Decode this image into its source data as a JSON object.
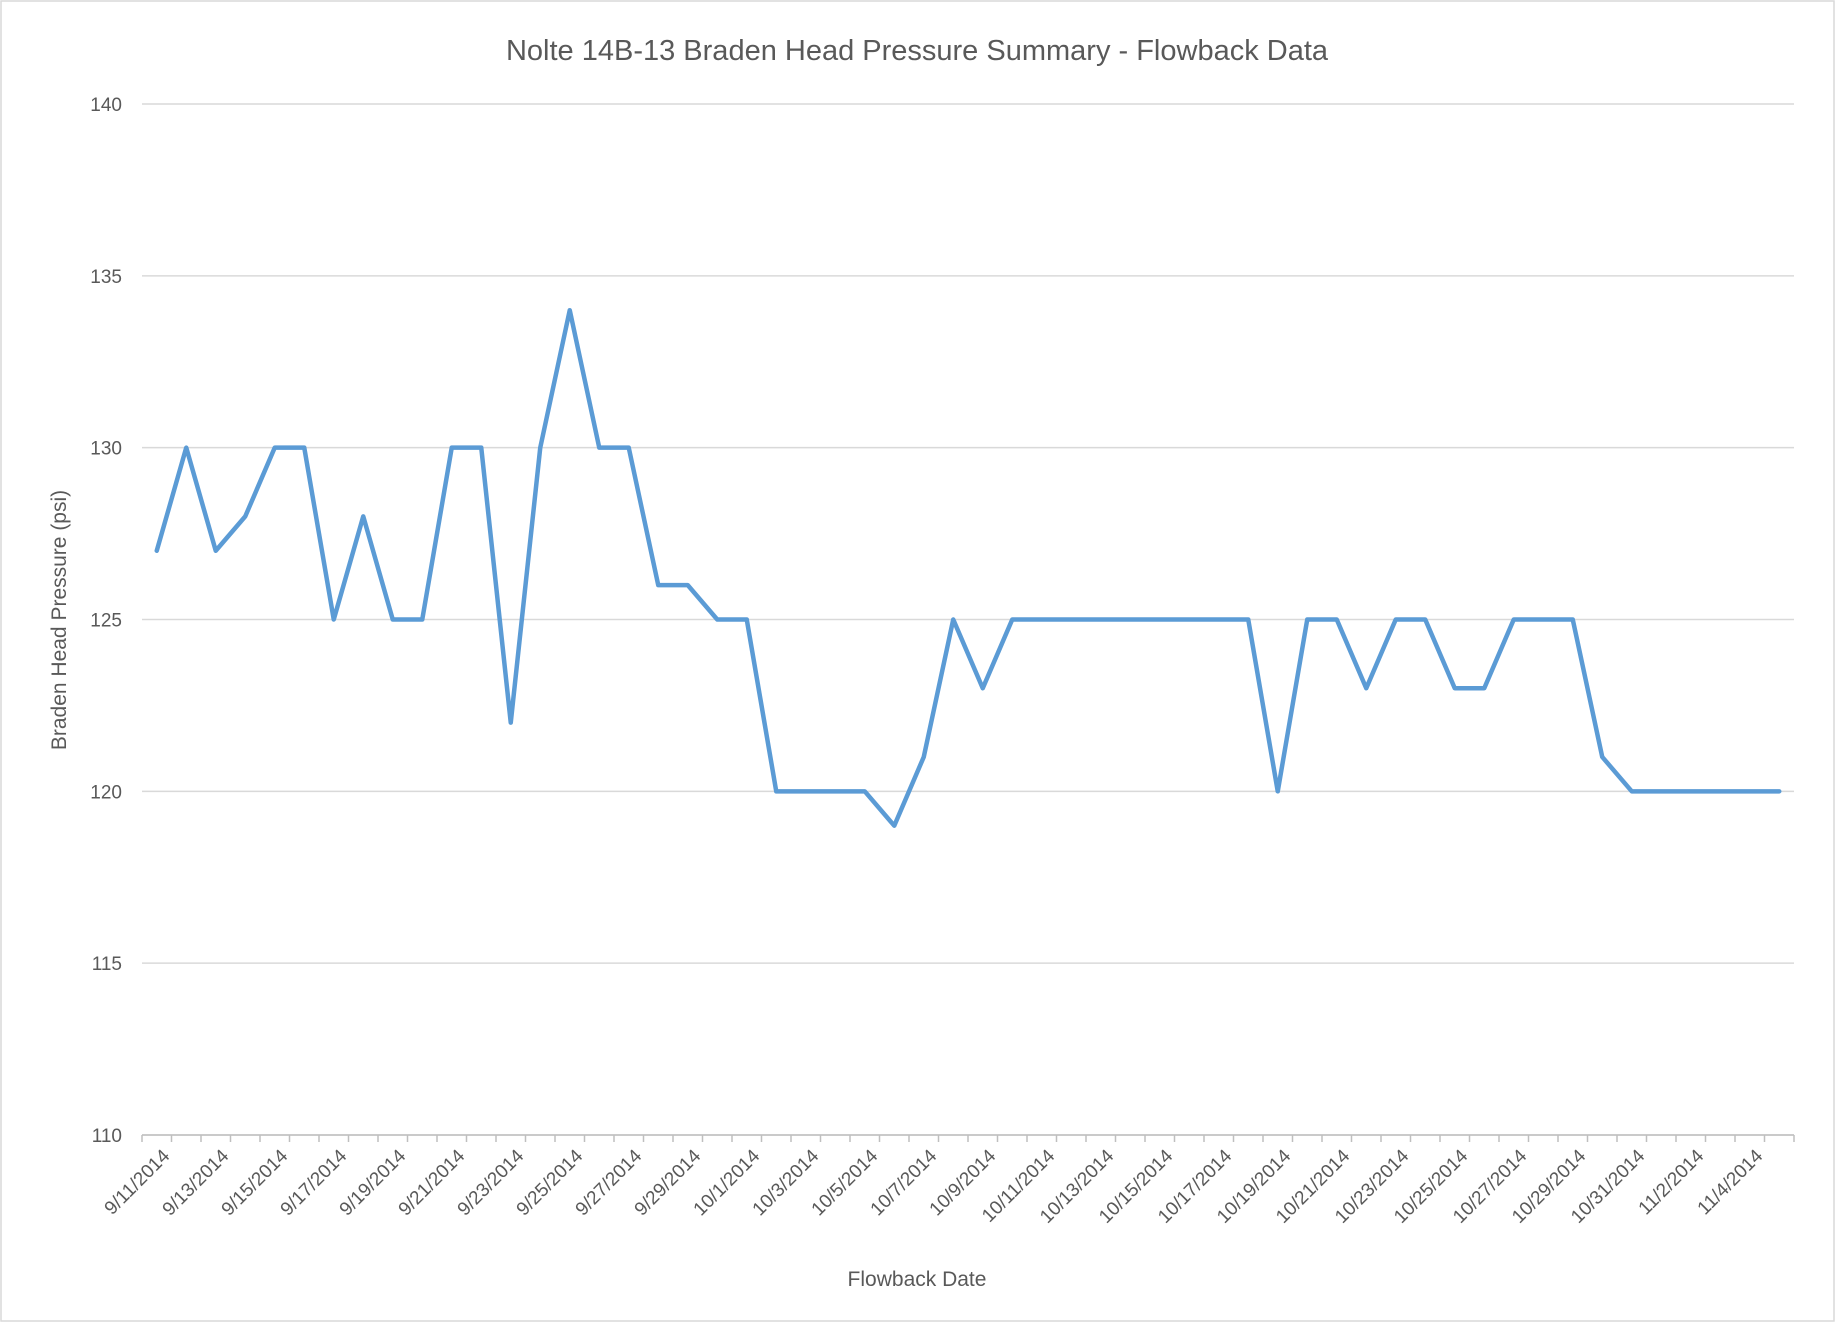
{
  "chart_data": {
    "type": "line",
    "title": "Nolte 14B-13 Braden Head Pressure Summary - Flowback Data",
    "x_label": "Flowback Date",
    "y_label": "Braden Head Pressure (psi)",
    "categories": [
      "9/11/2014",
      null,
      "9/13/2014",
      null,
      "9/15/2014",
      null,
      "9/17/2014",
      null,
      "9/19/2014",
      null,
      "9/21/2014",
      null,
      "9/23/2014",
      null,
      "9/25/2014",
      null,
      "9/27/2014",
      null,
      "9/29/2014",
      null,
      "10/1/2014",
      null,
      "10/3/2014",
      null,
      "10/5/2014",
      null,
      "10/7/2014",
      null,
      "10/9/2014",
      null,
      "10/11/2014",
      null,
      "10/13/2014",
      null,
      "10/15/2014",
      null,
      "10/17/2014",
      null,
      "10/19/2014",
      null,
      "10/21/2014",
      null,
      "10/23/2014",
      null,
      "10/25/2014",
      null,
      "10/27/2014",
      null,
      "10/29/2014",
      null,
      "10/31/2014",
      null,
      "11/2/2014",
      null,
      "11/4/2014",
      null
    ],
    "series": [
      {
        "name": "Braden Head Pressure",
        "color": "#5b9bd5",
        "values": [
          127,
          130,
          127,
          128,
          130,
          130,
          125,
          128,
          125,
          125,
          130,
          130,
          122,
          130,
          134,
          130,
          130,
          126,
          126,
          125,
          125,
          120,
          120,
          120,
          120,
          119,
          121,
          125,
          123,
          125,
          125,
          125,
          125,
          125,
          125,
          125,
          125,
          125,
          120,
          125,
          125,
          123,
          125,
          125,
          123,
          123,
          125,
          125,
          125,
          121,
          120,
          120,
          120,
          120,
          120,
          120
        ]
      }
    ],
    "ylim": [
      110,
      140
    ],
    "yticks": [
      110,
      115,
      120,
      125,
      130,
      135,
      140
    ],
    "grid": true
  }
}
